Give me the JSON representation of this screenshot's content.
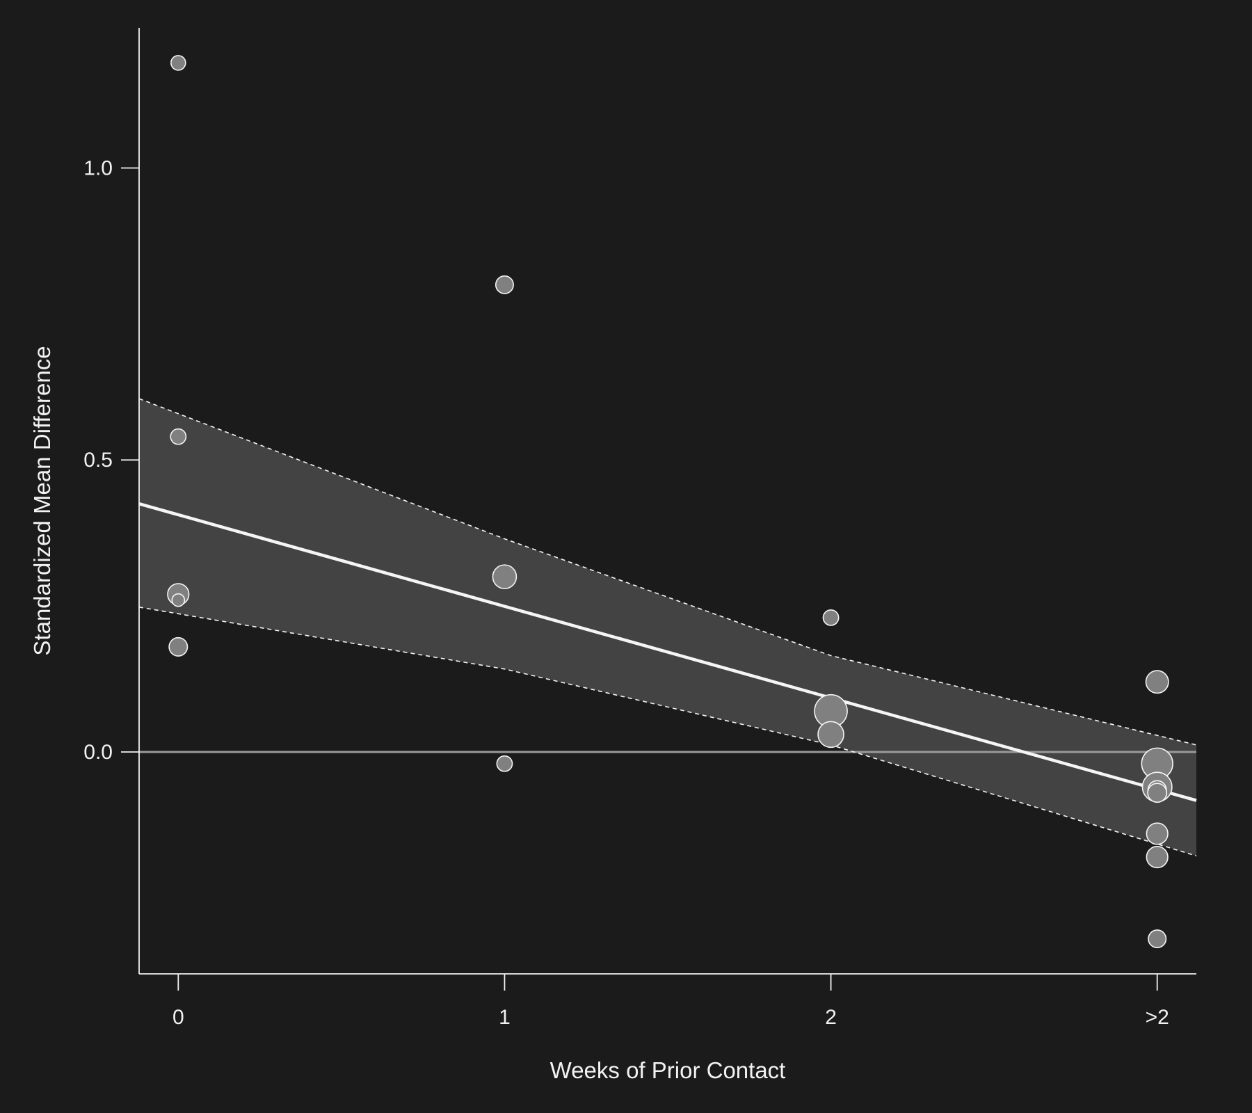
{
  "chart_data": {
    "type": "scatter",
    "title": "",
    "xlabel": "Weeks of Prior Contact",
    "ylabel": "Standardized Mean Difference",
    "x_categories": [
      "0",
      "1",
      "2",
      ">2"
    ],
    "xlim": [
      -0.12,
      3.12
    ],
    "ylim": [
      -0.38,
      1.24
    ],
    "y_ticks": [
      0.0,
      0.5,
      1.0
    ],
    "y_tick_labels": [
      "0.0",
      "0.5",
      "1.0"
    ],
    "grid": false,
    "legend": "none",
    "reference_line": {
      "y": 0.0,
      "color": "#9a9a9a"
    },
    "regression": {
      "fit": [
        [
          -0.12,
          0.425
        ],
        [
          3.12,
          -0.083
        ]
      ],
      "ci_upper": [
        [
          -0.12,
          0.605
        ],
        [
          1.0,
          0.365
        ],
        [
          2.0,
          0.165
        ],
        [
          3.12,
          0.012
        ]
      ],
      "ci_lower": [
        [
          -0.12,
          0.248
        ],
        [
          1.0,
          0.142
        ],
        [
          2.0,
          0.012
        ],
        [
          3.12,
          -0.178
        ]
      ]
    },
    "points": [
      {
        "x": 0,
        "y": 1.18,
        "weight": 1
      },
      {
        "x": 0,
        "y": 0.54,
        "weight": 1.2
      },
      {
        "x": 0,
        "y": 0.27,
        "weight": 3
      },
      {
        "x": 0,
        "y": 0.26,
        "weight": 0.6
      },
      {
        "x": 0,
        "y": 0.18,
        "weight": 2
      },
      {
        "x": 1,
        "y": 0.8,
        "weight": 1.8
      },
      {
        "x": 1,
        "y": 0.3,
        "weight": 4
      },
      {
        "x": 1,
        "y": -0.02,
        "weight": 1.2
      },
      {
        "x": 2,
        "y": 0.23,
        "weight": 1.2
      },
      {
        "x": 2,
        "y": 0.07,
        "weight": 9
      },
      {
        "x": 2,
        "y": 0.03,
        "weight": 5
      },
      {
        "x": 3,
        "y": 0.12,
        "weight": 3.5
      },
      {
        "x": 3,
        "y": -0.02,
        "weight": 8
      },
      {
        "x": 3,
        "y": -0.06,
        "weight": 7
      },
      {
        "x": 3,
        "y": -0.065,
        "weight": 2
      },
      {
        "x": 3,
        "y": -0.07,
        "weight": 2.2
      },
      {
        "x": 3,
        "y": -0.14,
        "weight": 3
      },
      {
        "x": 3,
        "y": -0.18,
        "weight": 3
      },
      {
        "x": 3,
        "y": -0.32,
        "weight": 1.8
      }
    ],
    "colors": {
      "background": "#1b1b1b",
      "band": "#434343",
      "fit_line": "#f5f5f5",
      "ci_line": "#f5f5f5",
      "axis": "#f2f2f2",
      "text": "#f2f2f2",
      "point_fill": "#808080",
      "point_stroke": "#f5f5f5"
    }
  }
}
